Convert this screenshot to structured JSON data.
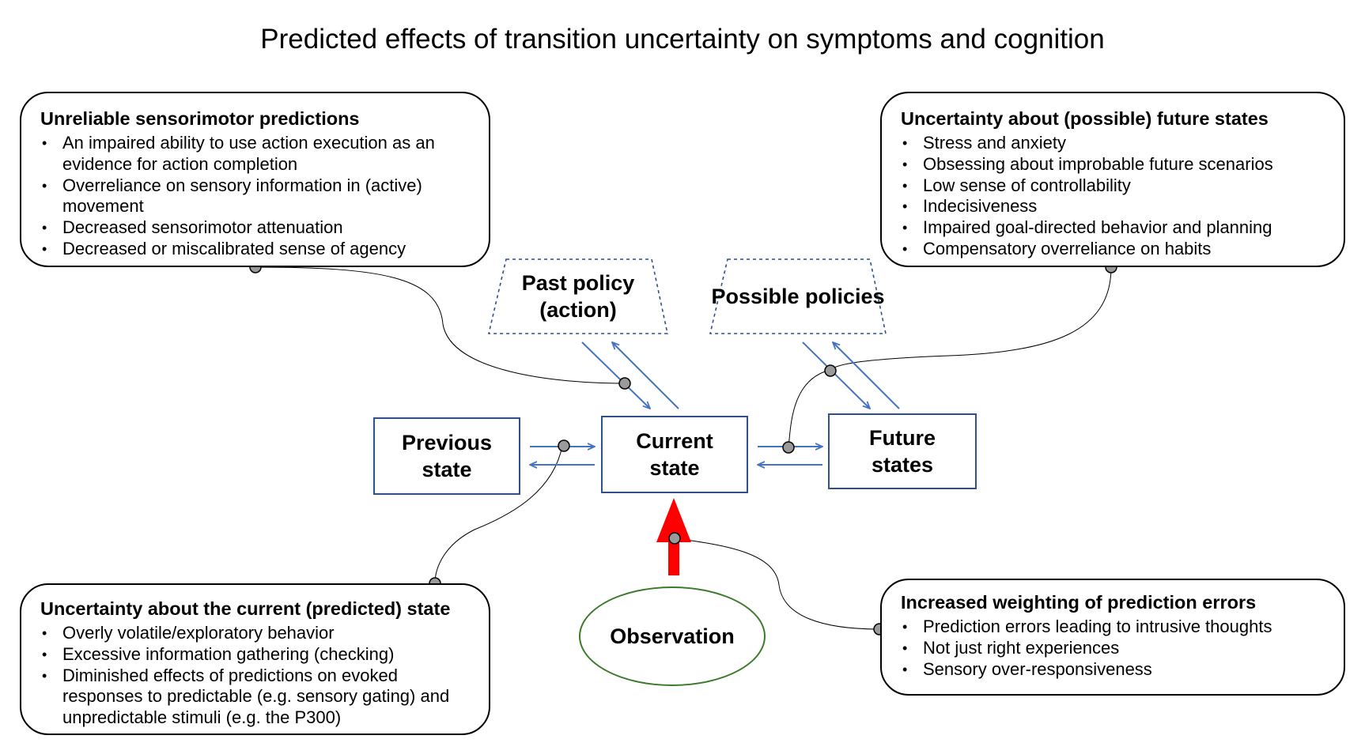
{
  "title": "Predicted effects of transition uncertainty on symptoms and cognition",
  "boxes": {
    "sensorimotor": {
      "heading": "Unreliable sensorimotor predictions",
      "items": [
        "An impaired ability to use action execution as an evidence for action completion",
        "Overreliance on sensory information in (active) movement",
        "Decreased sensorimotor attenuation",
        "Decreased or miscalibrated sense of agency"
      ]
    },
    "future": {
      "heading": "Uncertainty about (possible) future states",
      "items": [
        "Stress and anxiety",
        "Obsessing about improbable future scenarios",
        "Low sense of controllability",
        "Indecisiveness",
        "Impaired goal-directed behavior and planning",
        "Compensatory overreliance on habits"
      ]
    },
    "current": {
      "heading": "Uncertainty about the current (predicted) state",
      "items": [
        "Overly volatile/exploratory behavior",
        "Excessive information gathering (checking)",
        "Diminished effects of predictions on evoked responses to predictable (e.g. sensory gating) and unpredictable stimuli (e.g. the P300)"
      ]
    },
    "errors": {
      "heading": "Increased weighting of prediction errors",
      "items": [
        "Prediction errors leading to intrusive thoughts",
        "Not just right experiences",
        "Sensory over-responsiveness"
      ]
    }
  },
  "nodes": {
    "previous": [
      "Previous",
      "state"
    ],
    "current": [
      "Current",
      "state"
    ],
    "future": [
      "Future",
      "states"
    ],
    "past_policy": [
      "Past policy",
      "(action)"
    ],
    "possible_policies": [
      "Possible",
      "policies"
    ],
    "observation": "Observation"
  },
  "colors": {
    "node_border": "#2f4f8f",
    "arrow": "#4472c4",
    "observation_border": "#3a7a2a",
    "observation_arrow": "#ff0000",
    "connector_dot": "#9a9a9a"
  }
}
